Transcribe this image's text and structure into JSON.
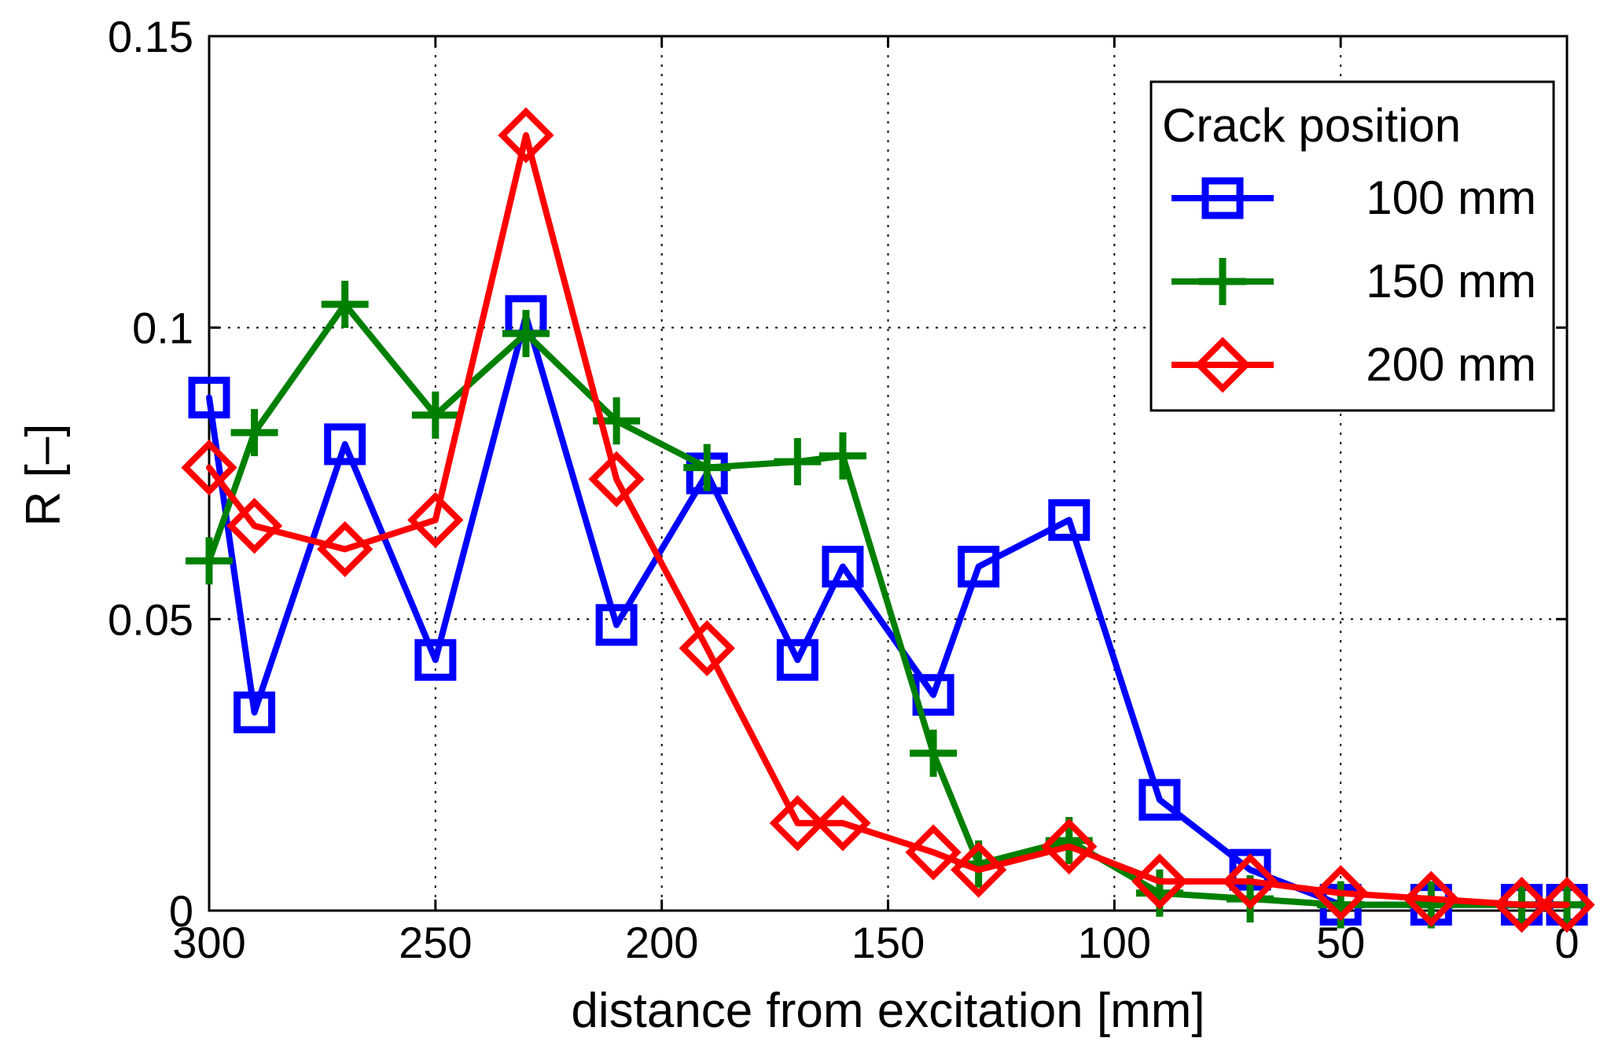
{
  "chart_data": {
    "type": "line",
    "title": "",
    "xlabel": "distance from excitation [mm]",
    "ylabel": "R [–]",
    "xlim": [
      300,
      0
    ],
    "ylim": [
      0,
      0.15
    ],
    "x_reversed": true,
    "grid": true,
    "x_ticks": [
      300,
      250,
      200,
      150,
      100,
      50,
      0
    ],
    "x_tick_labels": [
      "300",
      "250",
      "200",
      "150",
      "100",
      "50",
      "0"
    ],
    "y_ticks": [
      0,
      0.05,
      0.1,
      0.15
    ],
    "y_tick_labels": [
      "0",
      "0.05",
      "0.1",
      "0.15"
    ],
    "legend": {
      "title": "Crack position",
      "placement": "top-right"
    },
    "series": [
      {
        "name": "100 mm",
        "color": "#0000ff",
        "marker": "square",
        "x": [
          300,
          290,
          270,
          250,
          230,
          210,
          190,
          170,
          160,
          140,
          130,
          110,
          90,
          70,
          50,
          30,
          10,
          0
        ],
        "y": [
          0.088,
          0.034,
          0.08,
          0.043,
          0.102,
          0.049,
          0.075,
          0.043,
          0.059,
          0.037,
          0.059,
          0.067,
          0.019,
          0.007,
          0.001,
          0.001,
          0.001,
          0.001
        ]
      },
      {
        "name": "150 mm",
        "color": "#008000",
        "marker": "plus",
        "x": [
          300,
          290,
          270,
          250,
          230,
          210,
          190,
          170,
          160,
          140,
          130,
          110,
          90,
          70,
          50,
          30,
          10,
          0
        ],
        "y": [
          0.06,
          0.082,
          0.104,
          0.085,
          0.099,
          0.084,
          0.076,
          0.077,
          0.078,
          0.027,
          0.008,
          0.012,
          0.003,
          0.002,
          0.001,
          0.001,
          0.001,
          0.001
        ]
      },
      {
        "name": "200 mm",
        "color": "#ff0000",
        "marker": "diamond",
        "x": [
          300,
          290,
          270,
          250,
          230,
          210,
          190,
          170,
          160,
          140,
          130,
          110,
          90,
          70,
          50,
          30,
          10,
          0
        ],
        "y": [
          0.076,
          0.066,
          0.062,
          0.067,
          0.133,
          0.074,
          0.045,
          0.015,
          0.015,
          0.01,
          0.007,
          0.011,
          0.005,
          0.005,
          0.003,
          0.002,
          0.001,
          0.001
        ]
      }
    ]
  }
}
